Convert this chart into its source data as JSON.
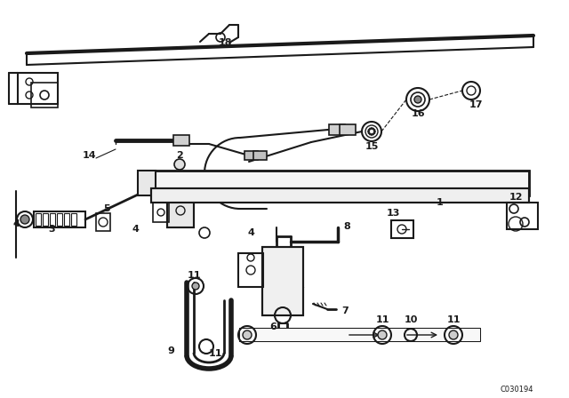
{
  "bg_color": "#ffffff",
  "line_color": "#1a1a1a",
  "watermark": "C030194",
  "figsize": [
    6.4,
    4.48
  ],
  "dpi": 100
}
